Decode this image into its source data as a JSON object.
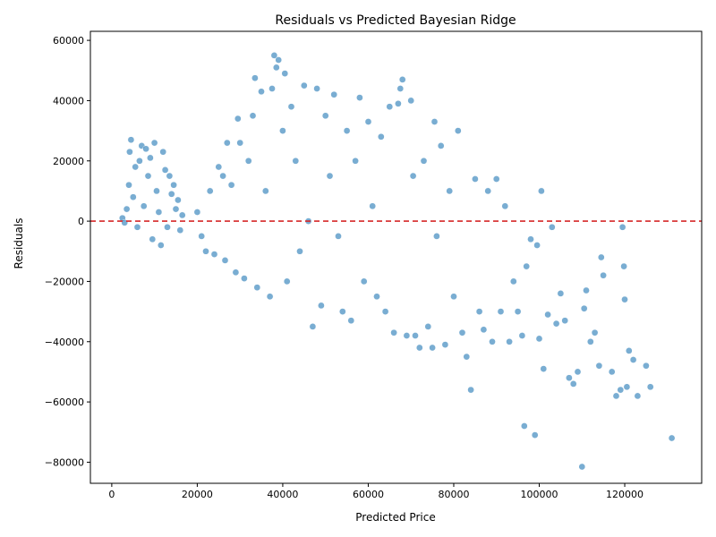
{
  "chart_data": {
    "type": "scatter",
    "title": "Residuals vs Predicted Bayesian Ridge",
    "xlabel": "Predicted Price",
    "ylabel": "Residuals",
    "xlim": [
      -5000,
      138000
    ],
    "ylim": [
      -87000,
      63000
    ],
    "x_ticks": [
      0,
      20000,
      40000,
      60000,
      80000,
      100000,
      120000
    ],
    "x_tick_labels": [
      "0",
      "20000",
      "40000",
      "60000",
      "80000",
      "100000",
      "120000"
    ],
    "y_ticks": [
      60000,
      40000,
      20000,
      0,
      -20000,
      -40000,
      -60000,
      -80000
    ],
    "y_tick_labels": [
      "60000",
      "40000",
      "20000",
      "0",
      "−20000",
      "−40000",
      "−60000",
      "−80000"
    ],
    "grid": false,
    "reference_line": {
      "y": 0,
      "color": "#d62728",
      "style": "dashed"
    },
    "point_color": "#1f77b4",
    "point_opacity": 0.6,
    "series": [
      {
        "values": [
          [
            2500,
            1000
          ],
          [
            3000,
            -500
          ],
          [
            3500,
            4000
          ],
          [
            4000,
            12000
          ],
          [
            4200,
            23000
          ],
          [
            4500,
            27000
          ],
          [
            5000,
            8000
          ],
          [
            5500,
            18000
          ],
          [
            6000,
            -2000
          ],
          [
            6500,
            20000
          ],
          [
            7000,
            25000
          ],
          [
            7500,
            5000
          ],
          [
            8000,
            24000
          ],
          [
            8500,
            15000
          ],
          [
            9000,
            21000
          ],
          [
            9500,
            -6000
          ],
          [
            10000,
            26000
          ],
          [
            10500,
            10000
          ],
          [
            11000,
            3000
          ],
          [
            11500,
            -8000
          ],
          [
            12000,
            23000
          ],
          [
            12500,
            17000
          ],
          [
            13000,
            -2000
          ],
          [
            13500,
            15000
          ],
          [
            14000,
            9000
          ],
          [
            14500,
            12000
          ],
          [
            15000,
            4000
          ],
          [
            15500,
            7000
          ],
          [
            16000,
            -3000
          ],
          [
            16500,
            2000
          ],
          [
            20000,
            3000
          ],
          [
            21000,
            -5000
          ],
          [
            22000,
            -10000
          ],
          [
            23000,
            10000
          ],
          [
            24000,
            -11000
          ],
          [
            25000,
            18000
          ],
          [
            26000,
            15000
          ],
          [
            26500,
            -13000
          ],
          [
            27000,
            26000
          ],
          [
            28000,
            12000
          ],
          [
            29000,
            -17000
          ],
          [
            29500,
            34000
          ],
          [
            30000,
            26000
          ],
          [
            31000,
            -19000
          ],
          [
            32000,
            20000
          ],
          [
            33000,
            35000
          ],
          [
            33500,
            47500
          ],
          [
            34000,
            -22000
          ],
          [
            35000,
            43000
          ],
          [
            36000,
            10000
          ],
          [
            37000,
            -25000
          ],
          [
            37500,
            44000
          ],
          [
            38000,
            55000
          ],
          [
            38500,
            51000
          ],
          [
            39000,
            53500
          ],
          [
            40000,
            30000
          ],
          [
            40500,
            49000
          ],
          [
            41000,
            -20000
          ],
          [
            42000,
            38000
          ],
          [
            43000,
            20000
          ],
          [
            44000,
            -10000
          ],
          [
            45000,
            45000
          ],
          [
            46000,
            0
          ],
          [
            47000,
            -35000
          ],
          [
            48000,
            44000
          ],
          [
            49000,
            -28000
          ],
          [
            50000,
            35000
          ],
          [
            51000,
            15000
          ],
          [
            52000,
            42000
          ],
          [
            53000,
            -5000
          ],
          [
            54000,
            -30000
          ],
          [
            55000,
            30000
          ],
          [
            56000,
            -33000
          ],
          [
            57000,
            20000
          ],
          [
            58000,
            41000
          ],
          [
            59000,
            -20000
          ],
          [
            60000,
            33000
          ],
          [
            61000,
            5000
          ],
          [
            62000,
            -25000
          ],
          [
            63000,
            28000
          ],
          [
            64000,
            -30000
          ],
          [
            65000,
            38000
          ],
          [
            66000,
            -37000
          ],
          [
            67000,
            39000
          ],
          [
            67500,
            44000
          ],
          [
            68000,
            47000
          ],
          [
            69000,
            -38000
          ],
          [
            70000,
            40000
          ],
          [
            70500,
            15000
          ],
          [
            71000,
            -38000
          ],
          [
            72000,
            -42000
          ],
          [
            73000,
            20000
          ],
          [
            74000,
            -35000
          ],
          [
            75000,
            -42000
          ],
          [
            75500,
            33000
          ],
          [
            76000,
            -5000
          ],
          [
            77000,
            25000
          ],
          [
            78000,
            -41000
          ],
          [
            79000,
            10000
          ],
          [
            80000,
            -25000
          ],
          [
            81000,
            30000
          ],
          [
            82000,
            -37000
          ],
          [
            83000,
            -45000
          ],
          [
            84000,
            -56000
          ],
          [
            85000,
            14000
          ],
          [
            86000,
            -30000
          ],
          [
            87000,
            -36000
          ],
          [
            88000,
            10000
          ],
          [
            89000,
            -40000
          ],
          [
            90000,
            14000
          ],
          [
            91000,
            -30000
          ],
          [
            92000,
            5000
          ],
          [
            93000,
            -40000
          ],
          [
            94000,
            -20000
          ],
          [
            95000,
            -30000
          ],
          [
            96000,
            -38000
          ],
          [
            96500,
            -68000
          ],
          [
            97000,
            -15000
          ],
          [
            98000,
            -6000
          ],
          [
            99000,
            -71000
          ],
          [
            99500,
            -8000
          ],
          [
            100000,
            -39000
          ],
          [
            100500,
            10000
          ],
          [
            101000,
            -49000
          ],
          [
            102000,
            -31000
          ],
          [
            103000,
            -2000
          ],
          [
            104000,
            -34000
          ],
          [
            105000,
            -24000
          ],
          [
            106000,
            -33000
          ],
          [
            107000,
            -52000
          ],
          [
            108000,
            -54000
          ],
          [
            109000,
            -50000
          ],
          [
            110000,
            -81500
          ],
          [
            110500,
            -29000
          ],
          [
            111000,
            -23000
          ],
          [
            112000,
            -40000
          ],
          [
            113000,
            -37000
          ],
          [
            114000,
            -48000
          ],
          [
            114500,
            -12000
          ],
          [
            115000,
            -18000
          ],
          [
            117000,
            -50000
          ],
          [
            118000,
            -58000
          ],
          [
            119000,
            -56000
          ],
          [
            119500,
            -2000
          ],
          [
            119800,
            -15000
          ],
          [
            120000,
            -26000
          ],
          [
            120500,
            -55000
          ],
          [
            121000,
            -43000
          ],
          [
            122000,
            -46000
          ],
          [
            123000,
            -58000
          ],
          [
            125000,
            -48000
          ],
          [
            126000,
            -55000
          ],
          [
            131000,
            -72000
          ]
        ]
      }
    ]
  }
}
